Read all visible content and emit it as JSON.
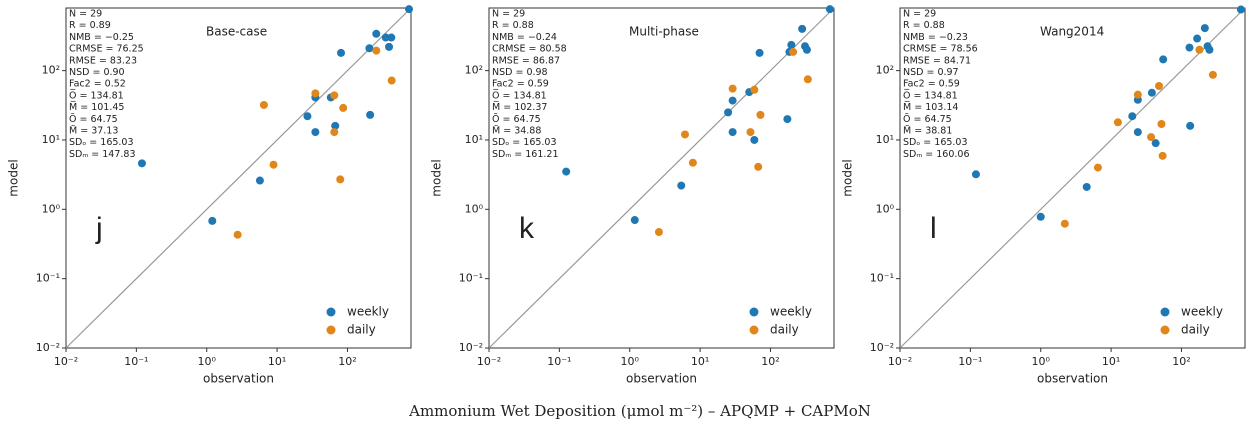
{
  "chart_data": [
    {
      "type": "scatter",
      "title": "Base-case",
      "panel_label": "j",
      "x_label": "observation",
      "y_label": "model",
      "xscale": "log",
      "yscale": "log",
      "xlim": [
        0.01,
        800
      ],
      "ylim": [
        0.01,
        800
      ],
      "xticks": [
        {
          "value": 0.01,
          "label": "10⁻²"
        },
        {
          "value": 0.1,
          "label": "10⁻¹"
        },
        {
          "value": 1,
          "label": "10⁰"
        },
        {
          "value": 10,
          "label": "10¹"
        },
        {
          "value": 100,
          "label": "10²"
        }
      ],
      "yticks": [
        {
          "value": 0.01,
          "label": "10⁻²"
        },
        {
          "value": 0.1,
          "label": "10⁻¹"
        },
        {
          "value": 1,
          "label": "10⁰"
        },
        {
          "value": 10,
          "label": "10¹"
        },
        {
          "value": 100,
          "label": "10²"
        }
      ],
      "legend": "lower right",
      "stats": [
        "N = 29",
        "R = 0.89",
        "NMB = −0.25",
        "CRMSE = 76.25",
        "RMSE = 83.23",
        "NSD = 0.90",
        "Fac2 = 0.52",
        "O̅ = 134.81",
        "M̅ = 101.45",
        "Õ = 64.75",
        "M̃ = 37.13",
        "SDₒ = 165.03",
        "SDₘ = 147.83"
      ],
      "series": [
        {
          "name": "weekly",
          "color": "#1f77b4",
          "x": [
            0.12,
            1.2,
            5.7,
            27,
            35,
            35,
            58,
            67,
            81,
            205,
            257,
            210,
            350,
            390,
            420,
            750
          ],
          "values": [
            4.6,
            0.68,
            2.6,
            22,
            41,
            13,
            41,
            16,
            180,
            210,
            340,
            23,
            300,
            220,
            300,
            770
          ]
        },
        {
          "name": "daily",
          "color": "#e0861a",
          "x": [
            2.75,
            6.5,
            8.9,
            35,
            65,
            87,
            65,
            79,
            257,
            425
          ],
          "values": [
            0.43,
            32,
            4.4,
            47,
            44,
            29,
            13,
            2.7,
            194,
            72
          ]
        }
      ]
    },
    {
      "type": "scatter",
      "title": "Multi-phase",
      "panel_label": "k",
      "x_label": "observation",
      "y_label": "model",
      "xscale": "log",
      "yscale": "log",
      "xlim": [
        0.01,
        800
      ],
      "ylim": [
        0.01,
        800
      ],
      "xticks": [
        {
          "value": 0.01,
          "label": "10⁻²"
        },
        {
          "value": 0.1,
          "label": "10⁻¹"
        },
        {
          "value": 1,
          "label": "10⁰"
        },
        {
          "value": 10,
          "label": "10¹"
        },
        {
          "value": 100,
          "label": "10²"
        }
      ],
      "yticks": [
        {
          "value": 0.01,
          "label": "10⁻²"
        },
        {
          "value": 0.1,
          "label": "10⁻¹"
        },
        {
          "value": 1,
          "label": "10⁰"
        },
        {
          "value": 10,
          "label": "10¹"
        },
        {
          "value": 100,
          "label": "10²"
        }
      ],
      "legend": "lower right",
      "stats": [
        "N = 29",
        "R = 0.88",
        "NMB = −0.24",
        "CRMSE = 80.58",
        "RMSE = 86.87",
        "NSD = 0.98",
        "Fac2 = 0.59",
        "O̅ = 134.81",
        "M̅ = 102.37",
        "Õ = 64.75",
        "M̃ = 34.88",
        "SDₒ = 165.03",
        "SDₘ = 161.21"
      ],
      "series": [
        {
          "name": "weekly",
          "color": "#1f77b4",
          "x": [
            0.125,
            1.18,
            5.4,
            25,
            29,
            29,
            50,
            59,
            70,
            174,
            186,
            198,
            282,
            310,
            330,
            700
          ],
          "values": [
            3.5,
            0.7,
            2.2,
            25,
            37,
            13,
            49,
            10,
            180,
            20,
            186,
            235,
            400,
            225,
            200,
            770
          ]
        },
        {
          "name": "daily",
          "color": "#e0861a",
          "x": [
            2.6,
            6.1,
            7.9,
            29,
            52,
            59,
            67,
            72,
            210,
            340
          ],
          "values": [
            0.47,
            12,
            4.7,
            55,
            13,
            53,
            4.1,
            23,
            186,
            75
          ]
        }
      ]
    },
    {
      "type": "scatter",
      "title": "Wang2014",
      "panel_label": "l",
      "x_label": "observation",
      "y_label": "model",
      "xscale": "log",
      "yscale": "log",
      "xlim": [
        0.01,
        800
      ],
      "ylim": [
        0.01,
        800
      ],
      "xticks": [
        {
          "value": 0.01,
          "label": "10⁻²"
        },
        {
          "value": 0.1,
          "label": "10⁻¹"
        },
        {
          "value": 1,
          "label": "10⁰"
        },
        {
          "value": 10,
          "label": "10¹"
        },
        {
          "value": 100,
          "label": "10²"
        }
      ],
      "yticks": [
        {
          "value": 0.01,
          "label": "10⁻²"
        },
        {
          "value": 0.1,
          "label": "10⁻¹"
        },
        {
          "value": 1,
          "label": "10⁰"
        },
        {
          "value": 10,
          "label": "10¹"
        },
        {
          "value": 100,
          "label": "10²"
        }
      ],
      "legend": "lower right",
      "stats": [
        "N = 29",
        "R = 0.88",
        "NMB = −0.23",
        "CRMSE = 78.56",
        "RMSE = 84.71",
        "NSD = 0.97",
        "Fac2 = 0.59",
        "O̅ = 134.81",
        "M̅ = 103.14",
        "Õ = 64.75",
        "M̃ = 38.81",
        "SDₒ = 165.03",
        "SDₘ = 160.06"
      ],
      "series": [
        {
          "name": "weekly",
          "color": "#1f77b4",
          "x": [
            0.12,
            1.0,
            4.5,
            20,
            24,
            24,
            38,
            43,
            55,
            133,
            130,
            167,
            215,
            235,
            250,
            700
          ],
          "values": [
            3.2,
            0.78,
            2.1,
            22,
            38,
            13,
            48,
            9.0,
            145,
            16,
            215,
            290,
            410,
            225,
            200,
            760
          ]
        },
        {
          "name": "daily",
          "color": "#e0861a",
          "x": [
            2.2,
            6.5,
            12.5,
            24,
            37,
            48,
            52,
            54,
            180,
            280
          ],
          "values": [
            0.62,
            4.0,
            18,
            45,
            11,
            60,
            17,
            5.9,
            200,
            87
          ]
        }
      ]
    }
  ],
  "caption": "Ammonium Wet Deposition (μmol m⁻²) – APQMP + CAPMoN"
}
